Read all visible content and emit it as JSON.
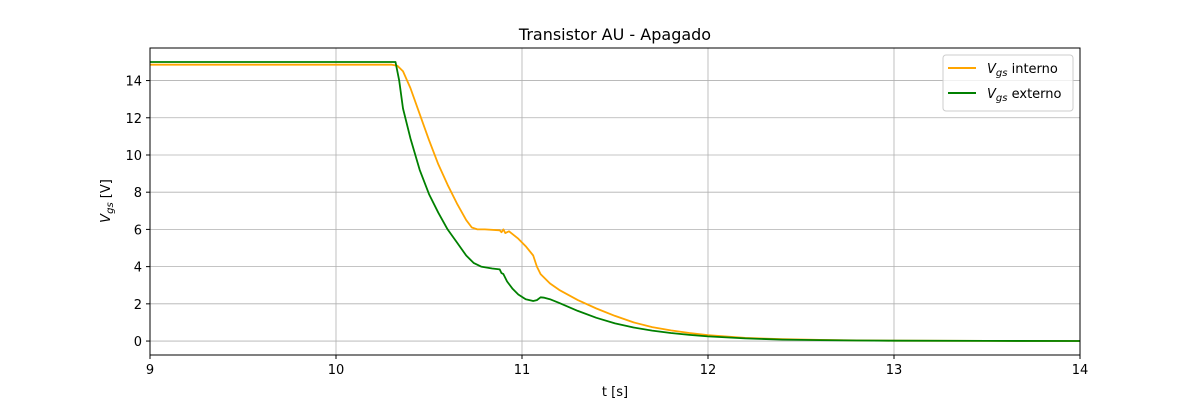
{
  "chart_data": {
    "type": "line",
    "title": "Transistor AU - Apagado",
    "xlabel": "t [s]",
    "ylabel": {
      "base": "V",
      "sub": "gs",
      "unit": " [V]"
    },
    "xlim": [
      9,
      14
    ],
    "ylim": [
      -0.75,
      15.75
    ],
    "xticks": [
      9,
      10,
      11,
      12,
      13,
      14
    ],
    "yticks": [
      0,
      2,
      4,
      6,
      8,
      10,
      12,
      14
    ],
    "grid": true,
    "legend_position": "top-right",
    "series": [
      {
        "name": {
          "base": "V",
          "sub": "gs",
          "rest": " interno"
        },
        "color": "#ffa500",
        "points": [
          [
            9.0,
            14.85
          ],
          [
            10.3,
            14.85
          ],
          [
            10.33,
            14.8
          ],
          [
            10.36,
            14.5
          ],
          [
            10.4,
            13.6
          ],
          [
            10.45,
            12.2
          ],
          [
            10.5,
            10.8
          ],
          [
            10.55,
            9.5
          ],
          [
            10.6,
            8.4
          ],
          [
            10.65,
            7.4
          ],
          [
            10.7,
            6.5
          ],
          [
            10.73,
            6.1
          ],
          [
            10.76,
            6.0
          ],
          [
            10.8,
            6.0
          ],
          [
            10.88,
            5.95
          ],
          [
            10.89,
            5.85
          ],
          [
            10.9,
            6.0
          ],
          [
            10.91,
            5.8
          ],
          [
            10.93,
            5.9
          ],
          [
            10.98,
            5.5
          ],
          [
            11.02,
            5.1
          ],
          [
            11.06,
            4.6
          ],
          [
            11.08,
            4.0
          ],
          [
            11.1,
            3.6
          ],
          [
            11.15,
            3.1
          ],
          [
            11.2,
            2.75
          ],
          [
            11.3,
            2.2
          ],
          [
            11.4,
            1.75
          ],
          [
            11.5,
            1.35
          ],
          [
            11.6,
            1.0
          ],
          [
            11.7,
            0.75
          ],
          [
            11.8,
            0.57
          ],
          [
            11.9,
            0.43
          ],
          [
            12.0,
            0.32
          ],
          [
            12.2,
            0.17
          ],
          [
            12.4,
            0.1
          ],
          [
            12.6,
            0.06
          ],
          [
            12.8,
            0.035
          ],
          [
            13.0,
            0.02
          ],
          [
            13.5,
            0.008
          ],
          [
            14.0,
            0.003
          ]
        ]
      },
      {
        "name": {
          "base": "V",
          "sub": "gs",
          "rest": " externo"
        },
        "color": "#008000",
        "points": [
          [
            9.0,
            15.0
          ],
          [
            10.32,
            15.0
          ],
          [
            10.34,
            14.0
          ],
          [
            10.36,
            12.5
          ],
          [
            10.4,
            10.9
          ],
          [
            10.45,
            9.2
          ],
          [
            10.5,
            7.9
          ],
          [
            10.55,
            6.9
          ],
          [
            10.6,
            6.0
          ],
          [
            10.65,
            5.3
          ],
          [
            10.7,
            4.6
          ],
          [
            10.74,
            4.2
          ],
          [
            10.78,
            4.0
          ],
          [
            10.84,
            3.9
          ],
          [
            10.88,
            3.85
          ],
          [
            10.89,
            3.65
          ],
          [
            10.9,
            3.6
          ],
          [
            10.92,
            3.2
          ],
          [
            10.95,
            2.8
          ],
          [
            10.98,
            2.5
          ],
          [
            11.02,
            2.25
          ],
          [
            11.06,
            2.15
          ],
          [
            11.08,
            2.2
          ],
          [
            11.1,
            2.35
          ],
          [
            11.12,
            2.33
          ],
          [
            11.15,
            2.25
          ],
          [
            11.2,
            2.05
          ],
          [
            11.3,
            1.62
          ],
          [
            11.4,
            1.25
          ],
          [
            11.5,
            0.95
          ],
          [
            11.6,
            0.73
          ],
          [
            11.7,
            0.56
          ],
          [
            11.8,
            0.43
          ],
          [
            11.9,
            0.33
          ],
          [
            12.0,
            0.25
          ],
          [
            12.2,
            0.14
          ],
          [
            12.4,
            0.08
          ],
          [
            12.6,
            0.05
          ],
          [
            12.8,
            0.03
          ],
          [
            13.0,
            0.018
          ],
          [
            13.5,
            0.006
          ],
          [
            14.0,
            0.002
          ]
        ]
      }
    ]
  }
}
